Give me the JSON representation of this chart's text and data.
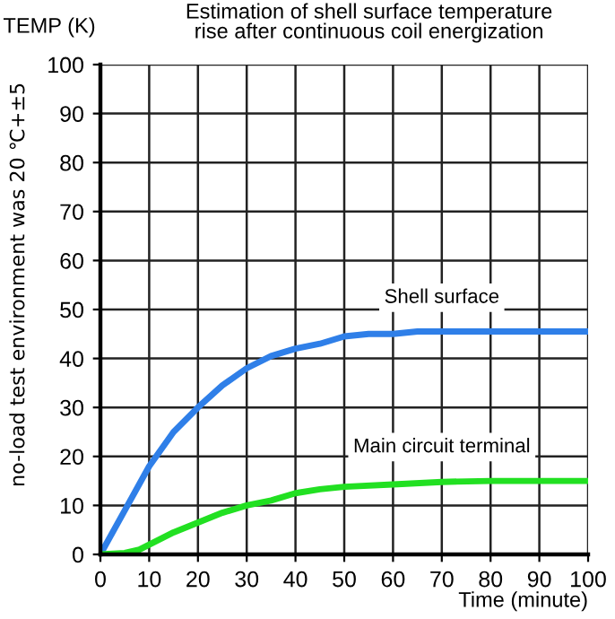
{
  "chart_data": {
    "type": "line",
    "title": "Estimation of shell surface temperature\nrise after continuous coil energization",
    "xlabel": "Time (minute)",
    "ylabel": "TEMP (K)",
    "annotations": [
      "no-load test environment was 20 ℃+±5"
    ],
    "xlim": [
      0,
      100
    ],
    "ylim": [
      0,
      100
    ],
    "xticks": [
      0,
      10,
      20,
      30,
      40,
      50,
      60,
      70,
      80,
      90,
      100
    ],
    "yticks": [
      0,
      10,
      20,
      30,
      40,
      50,
      60,
      70,
      80,
      90,
      100
    ],
    "grid": true,
    "legend": false,
    "marker": "none",
    "line_style": "solid",
    "series": [
      {
        "name": "Shell surface",
        "color": "#2f7fe8",
        "x": [
          0,
          5,
          10,
          15,
          20,
          25,
          30,
          35,
          40,
          45,
          50,
          55,
          60,
          65,
          70,
          80,
          90,
          100
        ],
        "values": [
          0,
          9,
          18,
          25,
          30,
          34.5,
          38,
          40.5,
          42,
          43,
          44.5,
          45,
          45,
          45.5,
          45.5,
          45.5,
          45.5,
          45.5
        ]
      },
      {
        "name": "Main circuit terminal",
        "color": "#22e022",
        "x": [
          0,
          5,
          8,
          10,
          15,
          20,
          25,
          30,
          35,
          40,
          45,
          50,
          60,
          70,
          80,
          90,
          100
        ],
        "values": [
          0,
          0.3,
          1,
          2,
          4.5,
          6.5,
          8.5,
          10,
          11,
          12.5,
          13.3,
          13.8,
          14.3,
          14.8,
          15,
          15,
          15
        ]
      }
    ]
  }
}
